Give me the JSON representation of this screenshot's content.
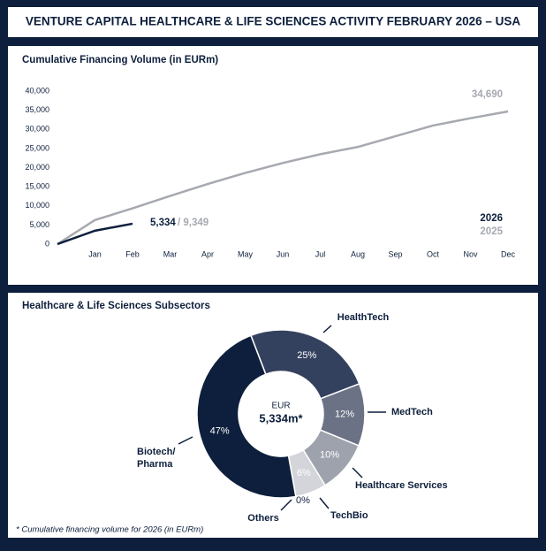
{
  "title": "VENTURE CAPITAL HEALTHCARE & LIFE SCIENCES ACTIVITY FEBRUARY 2026 – USA",
  "chart_data": [
    {
      "type": "line",
      "title": "Cumulative Financing Volume (in EURm)",
      "categories": [
        null,
        "Jan",
        "Feb",
        "Mar",
        "Apr",
        "May",
        "Jun",
        "Jul",
        "Aug",
        "Sep",
        "Oct",
        "Nov",
        "Dec"
      ],
      "series": [
        {
          "name": "2026",
          "color": "#0d1f3c",
          "values": [
            0,
            3500,
            5334,
            null,
            null,
            null,
            null,
            null,
            null,
            null,
            null,
            null,
            null
          ],
          "value_labels": [
            null,
            null,
            "5,334",
            null,
            null,
            null,
            null,
            null,
            null,
            null,
            null,
            null,
            null
          ]
        },
        {
          "name": "2025",
          "color": "#a6a9b0",
          "values": [
            0,
            6300,
            9349,
            12600,
            15700,
            18600,
            21200,
            23500,
            25400,
            28200,
            31000,
            32900,
            34690
          ],
          "value_labels": [
            null,
            null,
            "/ 9,349",
            null,
            null,
            null,
            null,
            null,
            null,
            null,
            null,
            null,
            "34,690"
          ]
        }
      ],
      "ylim": [
        0,
        40000
      ],
      "yticks": [
        0,
        {
          "value": 5000,
          "label": "5,000"
        },
        {
          "value": 10000,
          "label": "10,000"
        },
        {
          "value": 15000,
          "label": "15,000"
        },
        {
          "value": 20000,
          "label": "20,000"
        },
        {
          "value": 25000,
          "label": "25,000"
        },
        {
          "value": 30000,
          "label": "30,000"
        },
        {
          "value": 35000,
          "label": "35,000"
        },
        {
          "value": 40000,
          "label": "40,000"
        }
      ],
      "grid": false,
      "legend": "lower right"
    },
    {
      "type": "donut",
      "title": "Healthcare & Life Sciences Subsectors",
      "categories": [
        "HealthTech",
        "MedTech",
        "Healthcare Services",
        "TechBio",
        "Others",
        "Biotech/ Pharma"
      ],
      "values": [
        25,
        12,
        10,
        6,
        0,
        47
      ],
      "value_labels": [
        "25%",
        "12%",
        "10%",
        "6%",
        "0%",
        "47%"
      ],
      "colors": [
        "#34415e",
        "#6b7286",
        "#9ea2ad",
        "#d3d5da",
        "#e8e9ec",
        "#0d1f3c"
      ],
      "center_label": "EUR",
      "center_value": "5,334m*",
      "footnote": "* Cumulative financing volume for 2026 (in EURm)"
    }
  ]
}
